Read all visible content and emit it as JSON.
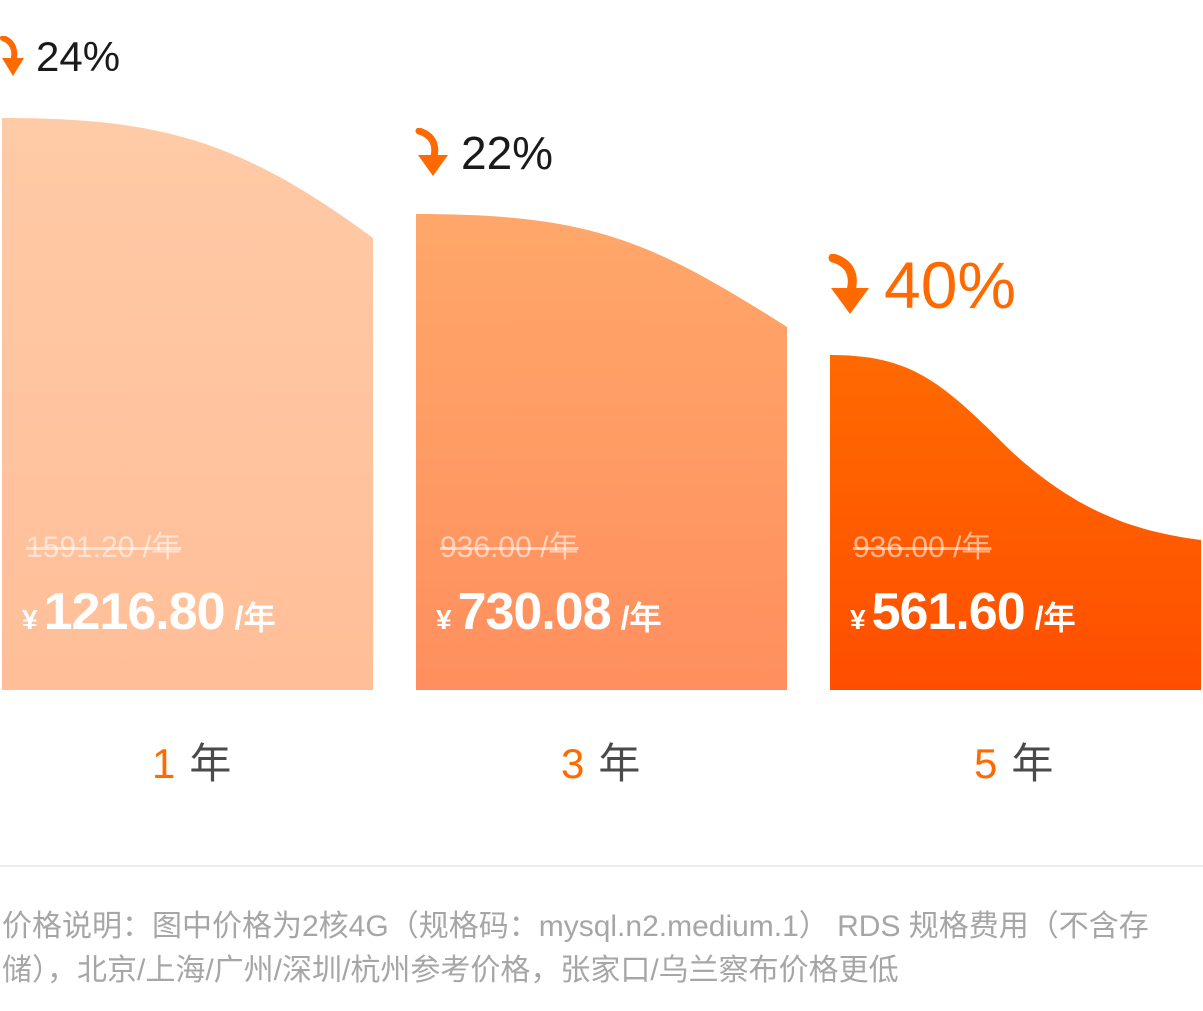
{
  "chart_data": {
    "type": "bar",
    "categories": [
      "1 年",
      "3 年",
      "5 年"
    ],
    "series": [
      {
        "values": [
          1216.8,
          730.08,
          561.6
        ]
      }
    ],
    "original_prices": [
      1591.2,
      936.0,
      936.0
    ],
    "bars": [
      {
        "term_num": "1",
        "term_unit": "年",
        "discount": "24%",
        "original": "1591.20 /年",
        "currency": "¥",
        "price": "1216.80",
        "price_unit": "/年"
      },
      {
        "term_num": "3",
        "term_unit": "年",
        "discount": "22%",
        "original": "936.00 /年",
        "currency": "¥",
        "price": "730.08",
        "price_unit": "/年"
      },
      {
        "term_num": "5",
        "term_unit": "年",
        "discount": "40%",
        "original": "936.00 /年",
        "currency": "¥",
        "price": "561.60",
        "price_unit": "/年"
      }
    ],
    "colors": {
      "bar1": [
        "#ffcaa6",
        "#ffbe98"
      ],
      "bar2": [
        "#ffa76a",
        "#ff8f5e"
      ],
      "bar3": [
        "#ff6a00",
        "#ff4e00"
      ],
      "accent": "#ff6a00"
    }
  },
  "footnote": "价格说明：图中价格为2核4G（规格码：mysql.n2.medium.1） RDS 规格费用（不含存储），北京/上海/广州/深圳/杭州参考价格，张家口/乌兰察布价格更低"
}
